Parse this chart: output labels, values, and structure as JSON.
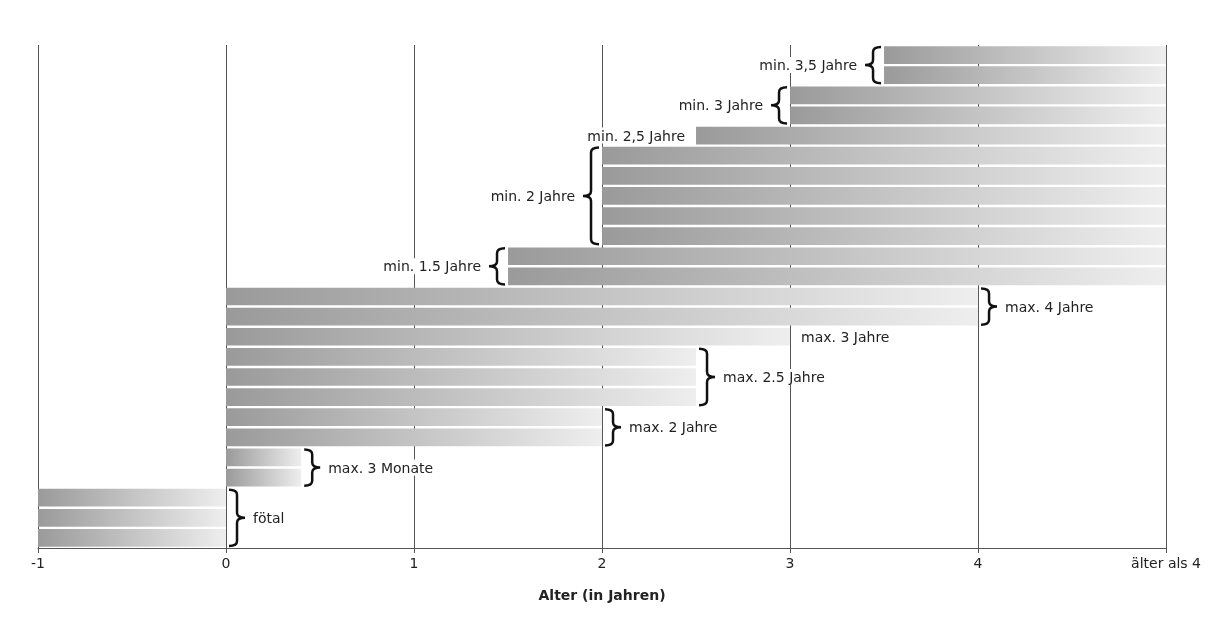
{
  "chart_data": {
    "type": "bar",
    "orientation": "horizontal",
    "xlabel": "Alter (in Jahren)",
    "categories": [
      null,
      null,
      null,
      null,
      null,
      null,
      null,
      null,
      null,
      null,
      null,
      null,
      null,
      null,
      null,
      null,
      null,
      null,
      null,
      null,
      null,
      null,
      null,
      null,
      null
    ],
    "base": [
      3.5,
      3.5,
      3,
      3,
      2.5,
      2,
      2,
      2,
      2,
      2,
      1.5,
      1.5,
      0,
      0,
      0,
      0,
      0,
      0,
      0,
      0,
      0,
      0,
      -1,
      -1,
      -1
    ],
    "values": [
      1.5,
      1.5,
      2,
      2,
      2.5,
      3,
      3,
      3,
      3,
      3,
      3.5,
      3.5,
      4,
      4,
      3,
      2.5,
      2.5,
      2.5,
      2,
      2,
      0.4,
      0.4,
      1,
      1,
      1
    ],
    "annotations": [
      {
        "text": "min. 3,5 Jahre",
        "x": 3.5
      },
      {
        "text": "min. 3 Jahre",
        "x": 3
      },
      {
        "text": "min. 2,5 Jahre",
        "x": 2.5
      },
      {
        "text": "min. 2 Jahre",
        "x": 2
      },
      {
        "text": "min. 1.5 Jahre",
        "x": 1.5
      },
      {
        "text": "max. 4 Jahre",
        "x": 4
      },
      {
        "text": "max. 3 Jahre",
        "x": 3
      },
      {
        "text": "max. 2.5 Jahre",
        "x": 2.5
      },
      {
        "text": "max. 2 Jahre",
        "x": 2
      },
      {
        "text": "max. 3 Monate",
        "x": 0.4
      },
      {
        "text": "fötal",
        "x": 0
      }
    ],
    "color": "#9a9a9a",
    "xlim": [
      -1,
      5
    ],
    "xticks": [
      -1,
      0,
      1,
      2,
      3,
      4,
      {
        "value": 5,
        "label": "älter als 4"
      }
    ],
    "grid": "x"
  }
}
